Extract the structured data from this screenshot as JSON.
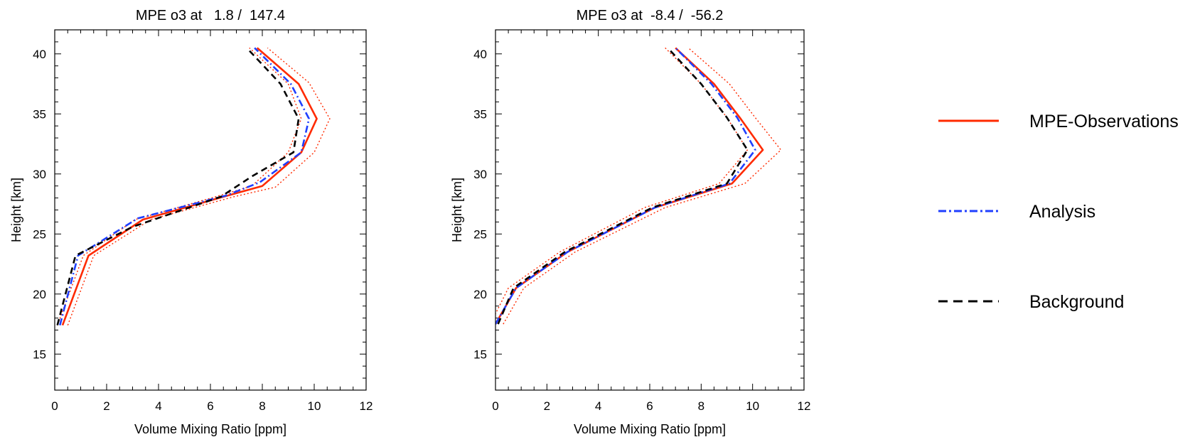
{
  "chart_data": [
    {
      "type": "line",
      "title": "MPE o3 at   1.8 /  147.4",
      "xlabel": "Volume Mixing Ratio [ppm]",
      "ylabel": "Height [km]",
      "xlim": [
        0,
        12
      ],
      "ylim": [
        12,
        42
      ],
      "xticks": [
        "0",
        "2",
        "4",
        "6",
        "8",
        "10",
        "12"
      ],
      "yticks": [
        "15",
        "20",
        "25",
        "30",
        "35",
        "40"
      ],
      "grid": false,
      "series": [
        {
          "name": "MPE-Observations",
          "color": "#ff2a00",
          "dash": "solid",
          "x": [
            0.3,
            1.3,
            3.4,
            6.5,
            8.0,
            9.5,
            10.1,
            9.4,
            7.8
          ],
          "y": [
            17.4,
            23.2,
            26.2,
            28.1,
            29.0,
            31.8,
            34.6,
            37.5,
            40.5
          ]
        },
        {
          "name": "MPE-Observations upper",
          "color": "#ff2a00",
          "dash": "dotted",
          "x": [
            0.5,
            1.5,
            3.7,
            6.9,
            8.5,
            10.0,
            10.6,
            9.8,
            8.2
          ],
          "y": [
            17.4,
            23.2,
            26.2,
            28.1,
            28.9,
            31.8,
            34.6,
            37.6,
            40.5
          ]
        },
        {
          "name": "MPE-Observations lower",
          "color": "#ff2a00",
          "dash": "dotted",
          "x": [
            0.1,
            1.1,
            3.1,
            6.2,
            7.6,
            9.0,
            9.5,
            9.0,
            7.5
          ],
          "y": [
            17.4,
            23.2,
            26.2,
            28.1,
            29.0,
            31.8,
            34.6,
            37.5,
            40.5
          ]
        },
        {
          "name": "Analysis",
          "color": "#1f3fff",
          "dash": "dashdot",
          "x": [
            0.2,
            0.9,
            3.2,
            6.6,
            7.9,
            9.5,
            9.8,
            9.1,
            7.7
          ],
          "y": [
            17.4,
            23.2,
            26.3,
            28.2,
            29.3,
            31.8,
            34.6,
            37.5,
            40.5
          ]
        },
        {
          "name": "Background",
          "color": "#000000",
          "dash": "dashed",
          "x": [
            0.1,
            0.8,
            3.0,
            6.4,
            7.6,
            9.2,
            9.4,
            8.7,
            7.4
          ],
          "y": [
            17.4,
            23.2,
            25.6,
            28.1,
            29.8,
            31.8,
            34.6,
            37.5,
            40.5
          ]
        }
      ]
    },
    {
      "type": "line",
      "title": "MPE o3 at  -8.4 /  -56.2",
      "xlabel": "Volume Mixing Ratio [ppm]",
      "ylabel": "Height [km]",
      "xlim": [
        0,
        12
      ],
      "ylim": [
        12,
        42
      ],
      "xticks": [
        "0",
        "2",
        "4",
        "6",
        "8",
        "10",
        "12"
      ],
      "yticks": [
        "15",
        "20",
        "25",
        "30",
        "35",
        "40"
      ],
      "grid": false,
      "series": [
        {
          "name": "MPE-Observations",
          "color": "#ff2a00",
          "dash": "solid",
          "x": [
            0.0,
            0.8,
            2.8,
            6.2,
            9.2,
            10.4,
            9.5,
            8.5,
            7.0
          ],
          "y": [
            17.5,
            20.5,
            23.5,
            27.2,
            29.2,
            32.0,
            34.7,
            37.5,
            40.5
          ]
        },
        {
          "name": "MPE-Observations upper",
          "color": "#ff2a00",
          "dash": "dotted",
          "x": [
            0.3,
            1.1,
            3.1,
            6.6,
            9.7,
            11.1,
            10.1,
            9.1,
            7.5
          ],
          "y": [
            17.5,
            20.5,
            23.5,
            27.2,
            29.2,
            32.0,
            34.7,
            37.5,
            40.5
          ]
        },
        {
          "name": "MPE-Observations lower",
          "color": "#ff2a00",
          "dash": "dotted",
          "x": [
            -0.2,
            0.5,
            2.5,
            5.8,
            8.7,
            9.8,
            9.0,
            8.0,
            6.6
          ],
          "y": [
            17.5,
            20.5,
            23.5,
            27.2,
            29.2,
            32.0,
            34.7,
            37.5,
            40.5
          ]
        },
        {
          "name": "Analysis",
          "color": "#1f3fff",
          "dash": "dashdot",
          "x": [
            0.0,
            0.8,
            2.8,
            6.2,
            9.1,
            10.1,
            9.4,
            8.4,
            7.0
          ],
          "y": [
            17.5,
            20.5,
            23.5,
            27.2,
            29.2,
            32.0,
            34.7,
            37.5,
            40.5
          ]
        },
        {
          "name": "Background",
          "color": "#000000",
          "dash": "dashed",
          "x": [
            0.1,
            0.7,
            2.7,
            6.1,
            9.0,
            9.8,
            9.0,
            8.0,
            6.7
          ],
          "y": [
            17.5,
            20.5,
            23.5,
            27.2,
            29.2,
            32.0,
            34.7,
            37.5,
            40.5
          ]
        }
      ]
    }
  ],
  "legend": {
    "placement": "right",
    "items": [
      {
        "label": "MPE-Observations",
        "color": "#ff2a00",
        "dash": "solid"
      },
      {
        "label": "Analysis",
        "color": "#1f3fff",
        "dash": "dashdot"
      },
      {
        "label": "Background",
        "color": "#000000",
        "dash": "dashed"
      }
    ]
  }
}
